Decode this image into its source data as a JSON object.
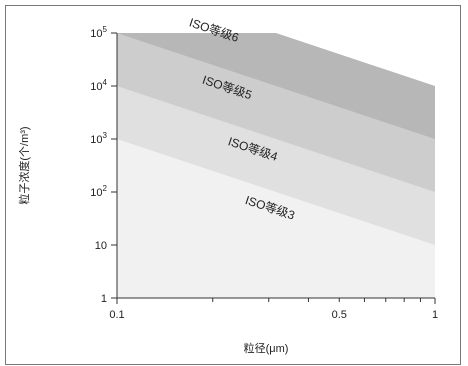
{
  "chart_data": {
    "type": "area",
    "title": "",
    "xlabel": "粒径(μm)",
    "ylabel": "粒子浓度(个/m³)",
    "x_scale": "log",
    "y_scale": "log",
    "xlim": [
      0.1,
      1
    ],
    "ylim": [
      1,
      100000
    ],
    "x_ticks": [
      {
        "value": 0.1,
        "label": "0.1"
      },
      {
        "value": 0.5,
        "label": "0.5"
      },
      {
        "value": 1,
        "label": "1"
      }
    ],
    "y_ticks": [
      {
        "value": 1,
        "label": "1"
      },
      {
        "value": 10,
        "label": "10"
      },
      {
        "value": 100,
        "label": "10",
        "exp": "2"
      },
      {
        "value": 1000,
        "label": "10",
        "exp": "3"
      },
      {
        "value": 10000,
        "label": "10",
        "exp": "4"
      },
      {
        "value": 100000,
        "label": "10",
        "exp": "5"
      }
    ],
    "series": [
      {
        "name": "ISO等级3",
        "x": [
          0.1,
          1
        ],
        "y": [
          1000,
          10
        ],
        "color": "#f1f1f1"
      },
      {
        "name": "ISO等级4",
        "x": [
          0.1,
          1
        ],
        "y": [
          10000,
          100
        ],
        "color": "#e0e0e0"
      },
      {
        "name": "ISO等级5",
        "x": [
          0.1,
          1
        ],
        "y": [
          100000,
          1000
        ],
        "color": "#cdcdcd"
      },
      {
        "name": "ISO等级6",
        "x": [
          0.1,
          1
        ],
        "y": [
          1000000,
          10000
        ],
        "color": "#b7b7b7"
      }
    ],
    "grid": false,
    "legend": "in-plot labels"
  }
}
